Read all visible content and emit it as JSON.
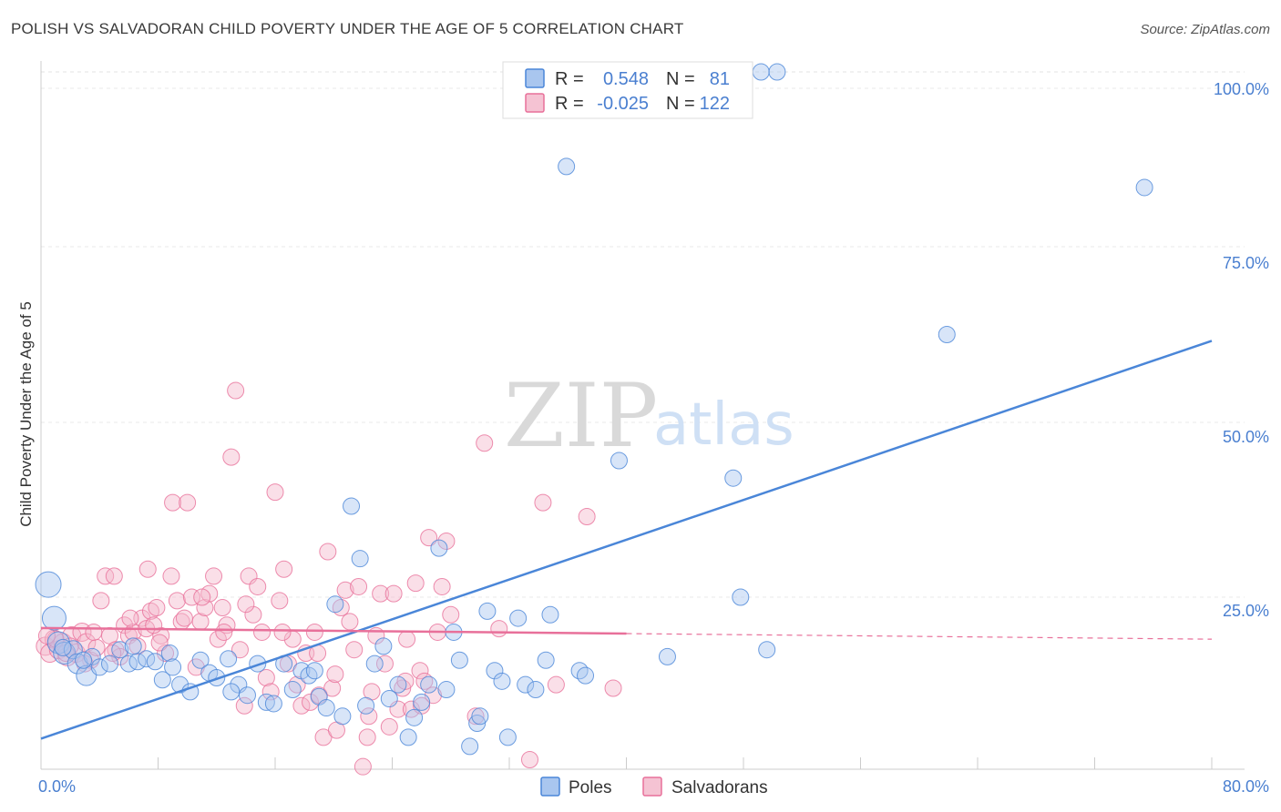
{
  "title": "POLISH VS SALVADORAN CHILD POVERTY UNDER THE AGE OF 5 CORRELATION CHART",
  "source": "Source: ZipAtlas.com",
  "watermark": {
    "zip": "ZIP",
    "atlas": "atlas"
  },
  "colors": {
    "poles": "#4a86d8",
    "poles_fill": "#a9c6ef",
    "salvadorans": "#e8709a",
    "salvadorans_fill": "#f5b8cc",
    "accent_text": "#4a7fd0"
  },
  "legend": {
    "poles": {
      "r_label": "R =",
      "r_value": "0.548",
      "n_label": "N =",
      "n_value": "81"
    },
    "salvadorans": {
      "r_label": "R =",
      "r_value": "-0.025",
      "n_label": "N =",
      "n_value": "122"
    }
  },
  "bottom_legend": [
    "Poles",
    "Salvadorans"
  ],
  "chart_data": {
    "type": "scatter",
    "title": "POLISH VS SALVADORAN CHILD POVERTY UNDER THE AGE OF 5 CORRELATION CHART",
    "xlabel": "",
    "ylabel": "Child Poverty Under the Age of 5",
    "xlim": [
      0,
      80
    ],
    "ylim": [
      0,
      102
    ],
    "x_tick_labels": [
      "0.0%",
      "80.0%"
    ],
    "y_ticks": [
      25,
      50,
      75,
      100
    ],
    "y_tick_labels": [
      "25.0%",
      "50.0%",
      "75.0%",
      "100.0%"
    ],
    "grid": true,
    "series": [
      {
        "name": "Poles",
        "r": 0.548,
        "n": 81,
        "trend": {
          "x": [
            0,
            80
          ],
          "y": [
            4.8,
            61.6
          ],
          "dashed_from": null
        },
        "points": [
          [
            0.5,
            26.8,
            14
          ],
          [
            0.9,
            22,
            13
          ],
          [
            1.2,
            18.5,
            12
          ],
          [
            1.6,
            17,
            12
          ],
          [
            2.2,
            17.5,
            10
          ],
          [
            2.5,
            15.5,
            11
          ],
          [
            3.1,
            13.8,
            11
          ],
          [
            3.5,
            16.5,
            9
          ],
          [
            4.0,
            15,
            9
          ],
          [
            4.7,
            15.5,
            9
          ],
          [
            5.4,
            17.5,
            9
          ],
          [
            6.0,
            15.5,
            9
          ],
          [
            6.6,
            15.8,
            9
          ],
          [
            7.2,
            16.2,
            9
          ],
          [
            7.8,
            15.8,
            9
          ],
          [
            8.3,
            13.2,
            9
          ],
          [
            8.8,
            17,
            9
          ],
          [
            9.5,
            12.5,
            9
          ],
          [
            10.2,
            11.5,
            9
          ],
          [
            10.9,
            16,
            9
          ],
          [
            11.5,
            14.2,
            9
          ],
          [
            12.0,
            13.5,
            9
          ],
          [
            12.8,
            16.2,
            9
          ],
          [
            13.5,
            12.5,
            9
          ],
          [
            14.1,
            11,
            9
          ],
          [
            14.8,
            15.5,
            9
          ],
          [
            15.4,
            10,
            9
          ],
          [
            15.9,
            9.8,
            9
          ],
          [
            16.6,
            15.5,
            9
          ],
          [
            17.2,
            11.8,
            9
          ],
          [
            17.8,
            14.5,
            9
          ],
          [
            18.3,
            13.8,
            9
          ],
          [
            19.0,
            10.8,
            9
          ],
          [
            19.5,
            9.2,
            9
          ],
          [
            20.1,
            24,
            9
          ],
          [
            20.6,
            8,
            9
          ],
          [
            21.2,
            38,
            9
          ],
          [
            21.8,
            30.5,
            9
          ],
          [
            22.2,
            9.5,
            9
          ],
          [
            22.8,
            15.5,
            9
          ],
          [
            23.4,
            18,
            9
          ],
          [
            23.8,
            10.5,
            9
          ],
          [
            24.4,
            12.5,
            9
          ],
          [
            25.1,
            5,
            9
          ],
          [
            25.5,
            7.8,
            9
          ],
          [
            26.0,
            10,
            9
          ],
          [
            26.5,
            12.5,
            9
          ],
          [
            27.2,
            32,
            9
          ],
          [
            27.7,
            11.8,
            9
          ],
          [
            28.2,
            20,
            9
          ],
          [
            28.6,
            16,
            9
          ],
          [
            29.3,
            3.7,
            9
          ],
          [
            29.8,
            7,
            9
          ],
          [
            30.0,
            8,
            9
          ],
          [
            30.5,
            23,
            9
          ],
          [
            31.0,
            14.5,
            9
          ],
          [
            31.5,
            13,
            9
          ],
          [
            31.9,
            5,
            9
          ],
          [
            32.6,
            22,
            9
          ],
          [
            33.1,
            12.5,
            9
          ],
          [
            33.8,
            11.8,
            9
          ],
          [
            34.5,
            16,
            9
          ],
          [
            34.8,
            22.5,
            9
          ],
          [
            35.9,
            86.5,
            9
          ],
          [
            36.8,
            14.5,
            9
          ],
          [
            37.2,
            13.8,
            9
          ],
          [
            39.5,
            44.5,
            9
          ],
          [
            42.8,
            16.5,
            9
          ],
          [
            47.8,
            25,
            9
          ],
          [
            47.3,
            42,
            9
          ],
          [
            49.6,
            17.5,
            9
          ],
          [
            49.2,
            100,
            9
          ],
          [
            50.3,
            100,
            9
          ],
          [
            61.9,
            62.5,
            9
          ],
          [
            75.4,
            83.5,
            9
          ],
          [
            18.7,
            14.5,
            9
          ],
          [
            13.0,
            11.5,
            9
          ],
          [
            9.0,
            15,
            9
          ],
          [
            6.3,
            18,
            9
          ],
          [
            1.5,
            17.8,
            9
          ],
          [
            2.9,
            16,
            9
          ]
        ]
      },
      {
        "name": "Salvadorans",
        "r": -0.025,
        "n": 122,
        "trend": {
          "x": [
            0,
            40,
            80
          ],
          "y": [
            20.6,
            19.8,
            19.0
          ],
          "dashed_from": 40
        },
        "points": [
          [
            0.3,
            18,
            10
          ],
          [
            0.6,
            17,
            10
          ],
          [
            0.9,
            19,
            10
          ],
          [
            1.2,
            17.5,
            10
          ],
          [
            1.5,
            18.5,
            10
          ],
          [
            1.8,
            16.5,
            10
          ],
          [
            2.1,
            19.5,
            10
          ],
          [
            2.4,
            17,
            10
          ],
          [
            2.8,
            20,
            10
          ],
          [
            3.1,
            18.5,
            10
          ],
          [
            3.4,
            16,
            9
          ],
          [
            3.8,
            17.8,
            9
          ],
          [
            4.1,
            24.5,
            9
          ],
          [
            4.4,
            28,
            9
          ],
          [
            4.7,
            19.5,
            9
          ],
          [
            5.1,
            17.5,
            9
          ],
          [
            5.4,
            16.5,
            9
          ],
          [
            5.7,
            21,
            9
          ],
          [
            6.0,
            19.5,
            9
          ],
          [
            6.3,
            20,
            9
          ],
          [
            6.6,
            18,
            9
          ],
          [
            6.9,
            22,
            9
          ],
          [
            7.2,
            20.5,
            9
          ],
          [
            7.5,
            23,
            9
          ],
          [
            7.3,
            29,
            9
          ],
          [
            7.9,
            23.5,
            9
          ],
          [
            8.2,
            19.5,
            9
          ],
          [
            8.5,
            17,
            9
          ],
          [
            8.9,
            28,
            9
          ],
          [
            9.0,
            38.5,
            9
          ],
          [
            9.3,
            24.5,
            9
          ],
          [
            9.6,
            21.5,
            9
          ],
          [
            10.0,
            38.5,
            9
          ],
          [
            10.3,
            25,
            9
          ],
          [
            10.6,
            15,
            9
          ],
          [
            10.9,
            21.5,
            9
          ],
          [
            11.2,
            23.5,
            9
          ],
          [
            11.5,
            25.5,
            9
          ],
          [
            11.8,
            28,
            9
          ],
          [
            12.1,
            19,
            9
          ],
          [
            12.4,
            23.5,
            9
          ],
          [
            12.7,
            21,
            9
          ],
          [
            13.0,
            45,
            9
          ],
          [
            13.3,
            54.5,
            9
          ],
          [
            13.6,
            17.5,
            9
          ],
          [
            13.9,
            9.5,
            9
          ],
          [
            14.2,
            28,
            9
          ],
          [
            14.5,
            22.5,
            9
          ],
          [
            14.8,
            26.5,
            9
          ],
          [
            15.1,
            20,
            9
          ],
          [
            15.4,
            13.5,
            9
          ],
          [
            15.7,
            11.5,
            9
          ],
          [
            16.0,
            40,
            9
          ],
          [
            16.3,
            24.5,
            9
          ],
          [
            16.6,
            29,
            9
          ],
          [
            16.9,
            15.5,
            9
          ],
          [
            17.2,
            19,
            9
          ],
          [
            17.5,
            12.5,
            9
          ],
          [
            17.8,
            9.5,
            9
          ],
          [
            18.1,
            17,
            9
          ],
          [
            18.4,
            10,
            9
          ],
          [
            18.7,
            20,
            9
          ],
          [
            19.0,
            11,
            9
          ],
          [
            19.3,
            5,
            9
          ],
          [
            19.6,
            31.5,
            9
          ],
          [
            19.9,
            12,
            9
          ],
          [
            20.2,
            6,
            9
          ],
          [
            20.5,
            23.5,
            9
          ],
          [
            20.8,
            26,
            9
          ],
          [
            21.1,
            21.5,
            9
          ],
          [
            21.4,
            17.5,
            9
          ],
          [
            21.7,
            26.5,
            9
          ],
          [
            22.0,
            0.8,
            9
          ],
          [
            22.3,
            5,
            9
          ],
          [
            22.6,
            11.5,
            9
          ],
          [
            22.9,
            19.5,
            9
          ],
          [
            23.2,
            25.5,
            9
          ],
          [
            23.5,
            15.5,
            9
          ],
          [
            23.8,
            6.5,
            9
          ],
          [
            24.1,
            25.5,
            9
          ],
          [
            24.4,
            9,
            9
          ],
          [
            24.7,
            12,
            9
          ],
          [
            25.0,
            19,
            9
          ],
          [
            25.3,
            9,
            9
          ],
          [
            25.6,
            27,
            9
          ],
          [
            25.9,
            14.5,
            9
          ],
          [
            26.2,
            13,
            9
          ],
          [
            26.5,
            33.5,
            9
          ],
          [
            26.8,
            11,
            9
          ],
          [
            27.1,
            20,
            9
          ],
          [
            27.4,
            26.5,
            9
          ],
          [
            27.7,
            33,
            9
          ],
          [
            28.0,
            22.5,
            9
          ],
          [
            29.7,
            8,
            9
          ],
          [
            30.3,
            47,
            9
          ],
          [
            31.3,
            20.5,
            9
          ],
          [
            33.4,
            1.8,
            9
          ],
          [
            34.3,
            38.5,
            9
          ],
          [
            35.2,
            12.5,
            9
          ],
          [
            37.3,
            36.5,
            9
          ],
          [
            39.1,
            12,
            9
          ],
          [
            2.0,
            18,
            9
          ],
          [
            3.6,
            20,
            9
          ],
          [
            5.0,
            28,
            9
          ],
          [
            6.1,
            22,
            9
          ],
          [
            7.7,
            21,
            9
          ],
          [
            8.1,
            18.5,
            9
          ],
          [
            9.8,
            22,
            9
          ],
          [
            11.0,
            25,
            9
          ],
          [
            12.5,
            20,
            9
          ],
          [
            14.0,
            24,
            9
          ],
          [
            16.5,
            20,
            9
          ],
          [
            18.9,
            17,
            9
          ],
          [
            20.1,
            14,
            9
          ],
          [
            22.4,
            8,
            9
          ],
          [
            24.9,
            13,
            9
          ],
          [
            26.0,
            9.5,
            9
          ],
          [
            1.0,
            19,
            9
          ],
          [
            0.4,
            19.5,
            9
          ],
          [
            4.9,
            17,
            9
          ],
          [
            3.0,
            15.5,
            9
          ],
          [
            1.7,
            17,
            9
          ]
        ]
      }
    ]
  }
}
